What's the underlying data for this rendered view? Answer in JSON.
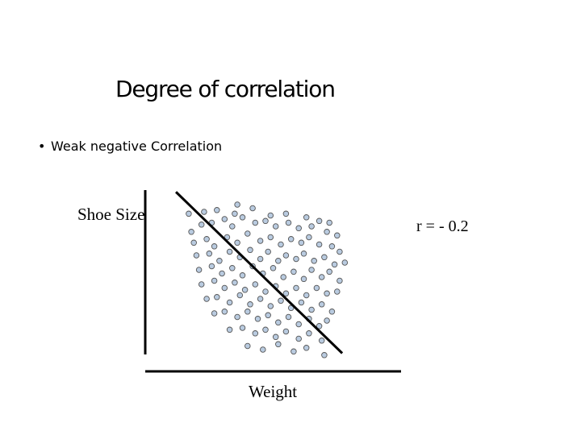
{
  "slide": {
    "title": "Degree of correlation",
    "bullet": "Weak negative Correlation"
  },
  "chart_data": {
    "type": "scatter",
    "title": "",
    "xlabel": "Weight",
    "ylabel": "Shoe Size",
    "annotation": "r = - 0.2",
    "correlation": -0.2,
    "grid": false,
    "legend": "none",
    "xlim": [
      0,
      100
    ],
    "ylim": [
      0,
      100
    ],
    "trendline": {
      "x": [
        12,
        77
      ],
      "y": [
        99,
        10
      ]
    },
    "marker_fill": "#b9cbe0",
    "marker_stroke": "#555555",
    "points": [
      [
        17,
        87
      ],
      [
        23,
        88
      ],
      [
        28,
        89
      ],
      [
        35,
        87
      ],
      [
        36,
        92
      ],
      [
        42,
        90
      ],
      [
        49,
        86
      ],
      [
        55,
        87
      ],
      [
        63,
        85
      ],
      [
        68,
        83
      ],
      [
        72,
        82
      ],
      [
        18,
        77
      ],
      [
        22,
        81
      ],
      [
        26,
        82
      ],
      [
        31,
        84
      ],
      [
        34,
        80
      ],
      [
        38,
        85
      ],
      [
        43,
        82
      ],
      [
        47,
        83
      ],
      [
        51,
        80
      ],
      [
        56,
        82
      ],
      [
        60,
        79
      ],
      [
        65,
        80
      ],
      [
        71,
        77
      ],
      [
        75,
        75
      ],
      [
        19,
        71
      ],
      [
        24,
        73
      ],
      [
        27,
        69
      ],
      [
        32,
        74
      ],
      [
        36,
        71
      ],
      [
        40,
        76
      ],
      [
        45,
        72
      ],
      [
        49,
        74
      ],
      [
        53,
        70
      ],
      [
        57,
        73
      ],
      [
        61,
        71
      ],
      [
        64,
        74
      ],
      [
        68,
        70
      ],
      [
        73,
        69
      ],
      [
        76,
        66
      ],
      [
        20,
        64
      ],
      [
        25,
        65
      ],
      [
        29,
        61
      ],
      [
        33,
        66
      ],
      [
        37,
        63
      ],
      [
        41,
        67
      ],
      [
        45,
        62
      ],
      [
        48,
        66
      ],
      [
        52,
        61
      ],
      [
        55,
        64
      ],
      [
        59,
        62
      ],
      [
        62,
        65
      ],
      [
        66,
        61
      ],
      [
        70,
        63
      ],
      [
        74,
        59
      ],
      [
        78,
        60
      ],
      [
        21,
        56
      ],
      [
        26,
        58
      ],
      [
        30,
        54
      ],
      [
        34,
        57
      ],
      [
        38,
        53
      ],
      [
        42,
        58
      ],
      [
        46,
        54
      ],
      [
        50,
        57
      ],
      [
        54,
        52
      ],
      [
        58,
        55
      ],
      [
        62,
        51
      ],
      [
        65,
        56
      ],
      [
        69,
        52
      ],
      [
        72,
        55
      ],
      [
        76,
        50
      ],
      [
        22,
        48
      ],
      [
        27,
        50
      ],
      [
        31,
        46
      ],
      [
        35,
        49
      ],
      [
        39,
        45
      ],
      [
        43,
        48
      ],
      [
        47,
        44
      ],
      [
        51,
        47
      ],
      [
        55,
        43
      ],
      [
        59,
        46
      ],
      [
        63,
        42
      ],
      [
        67,
        46
      ],
      [
        71,
        43
      ],
      [
        75,
        44
      ],
      [
        24,
        40
      ],
      [
        28,
        41
      ],
      [
        33,
        38
      ],
      [
        37,
        42
      ],
      [
        41,
        37
      ],
      [
        45,
        40
      ],
      [
        49,
        36
      ],
      [
        53,
        39
      ],
      [
        57,
        35
      ],
      [
        61,
        38
      ],
      [
        65,
        34
      ],
      [
        69,
        37
      ],
      [
        73,
        33
      ],
      [
        27,
        32
      ],
      [
        31,
        33
      ],
      [
        36,
        30
      ],
      [
        40,
        33
      ],
      [
        44,
        29
      ],
      [
        48,
        31
      ],
      [
        52,
        27
      ],
      [
        56,
        30
      ],
      [
        60,
        26
      ],
      [
        64,
        29
      ],
      [
        68,
        25
      ],
      [
        71,
        28
      ],
      [
        33,
        23
      ],
      [
        38,
        24
      ],
      [
        43,
        21
      ],
      [
        47,
        23
      ],
      [
        51,
        19
      ],
      [
        55,
        22
      ],
      [
        60,
        18
      ],
      [
        64,
        21
      ],
      [
        69,
        17
      ],
      [
        40,
        14
      ],
      [
        46,
        12
      ],
      [
        52,
        15
      ],
      [
        58,
        11
      ],
      [
        63,
        13
      ],
      [
        70,
        9
      ]
    ]
  }
}
